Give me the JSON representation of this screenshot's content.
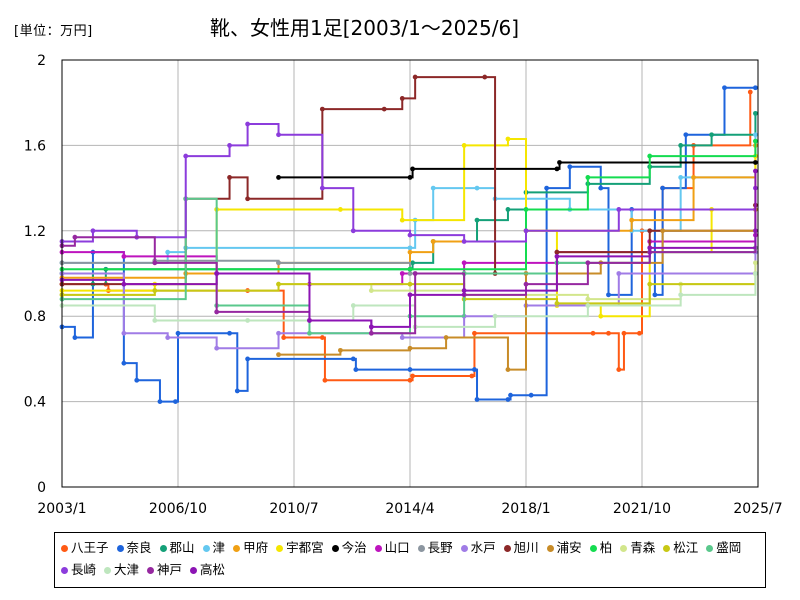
{
  "chart_data": {
    "type": "line",
    "title": "靴、女性用1足[2003/1～2025/6]",
    "unit_label": "[単位：万円]",
    "ylim": [
      0,
      2
    ],
    "yticks": [
      "0",
      "0.4",
      "0.8",
      "1.2",
      "1.6",
      "2"
    ],
    "xlim": [
      "2003-01",
      "2025-07"
    ],
    "xticks": [
      "2003/1",
      "2006/10",
      "2010/7",
      "2014/4",
      "2018/1",
      "2021/10",
      "2025/7"
    ],
    "grid": true,
    "legend_position": "bottom",
    "series": [
      {
        "name": "八王子",
        "color": "#ff5a14",
        "points": [
          [
            "2003-01",
            0.95
          ],
          [
            "2004-06",
            0.95
          ],
          [
            "2004-07",
            0.92
          ],
          [
            "2009-01",
            0.92
          ],
          [
            "2010-03",
            0.7
          ],
          [
            "2011-06",
            0.7
          ],
          [
            "2011-07",
            0.5
          ],
          [
            "2014-04",
            0.5
          ],
          [
            "2014-05",
            0.52
          ],
          [
            "2016-04",
            0.52
          ],
          [
            "2016-05",
            0.72
          ],
          [
            "2020-03",
            0.72
          ],
          [
            "2020-09",
            0.72
          ],
          [
            "2021-01",
            0.55
          ],
          [
            "2021-03",
            0.72
          ],
          [
            "2021-09",
            0.72
          ],
          [
            "2021-10",
            1.2
          ],
          [
            "2022-06",
            1.4
          ],
          [
            "2023-06",
            1.6
          ],
          [
            "2025-04",
            1.85
          ]
        ]
      },
      {
        "name": "奈良",
        "color": "#1e64dc",
        "points": [
          [
            "2003-01",
            0.75
          ],
          [
            "2003-06",
            0.7
          ],
          [
            "2004-01",
            1.1
          ],
          [
            "2005-01",
            0.58
          ],
          [
            "2005-06",
            0.5
          ],
          [
            "2006-03",
            0.4
          ],
          [
            "2006-09",
            0.4
          ],
          [
            "2006-10",
            0.72
          ],
          [
            "2008-06",
            0.72
          ],
          [
            "2008-09",
            0.45
          ],
          [
            "2009-01",
            0.6
          ],
          [
            "2012-06",
            0.6
          ],
          [
            "2012-07",
            0.55
          ],
          [
            "2014-04",
            0.55
          ],
          [
            "2016-05",
            0.55
          ],
          [
            "2016-06",
            0.41
          ],
          [
            "2017-06",
            0.41
          ],
          [
            "2017-07",
            0.43
          ],
          [
            "2018-03",
            0.43
          ],
          [
            "2018-09",
            1.4
          ],
          [
            "2019-06",
            1.5
          ],
          [
            "2020-06",
            1.4
          ],
          [
            "2020-09",
            0.9
          ],
          [
            "2021-06",
            1.3
          ],
          [
            "2022-03",
            0.9
          ],
          [
            "2022-06",
            1.4
          ],
          [
            "2023-03",
            1.65
          ],
          [
            "2024-06",
            1.87
          ],
          [
            "2025-06",
            1.87
          ]
        ]
      },
      {
        "name": "郡山",
        "color": "#14a078",
        "points": [
          [
            "2003-01",
            1.0
          ],
          [
            "2004-01",
            0.95
          ],
          [
            "2004-06",
            1.02
          ],
          [
            "2014-04",
            1.02
          ],
          [
            "2014-05",
            1.05
          ],
          [
            "2015-01",
            1.15
          ],
          [
            "2016-06",
            1.25
          ],
          [
            "2017-06",
            1.3
          ],
          [
            "2018-01",
            1.38
          ],
          [
            "2020-01",
            1.42
          ],
          [
            "2022-01",
            1.5
          ],
          [
            "2023-01",
            1.6
          ],
          [
            "2024-01",
            1.65
          ],
          [
            "2025-06",
            1.75
          ]
        ]
      },
      {
        "name": "津",
        "color": "#64c8f0",
        "points": [
          [
            "2003-01",
            1.05
          ],
          [
            "2006-06",
            1.1
          ],
          [
            "2007-01",
            1.12
          ],
          [
            "2014-04",
            1.12
          ],
          [
            "2014-06",
            1.25
          ],
          [
            "2015-01",
            1.4
          ],
          [
            "2016-06",
            1.4
          ],
          [
            "2017-01",
            1.35
          ],
          [
            "2019-06",
            1.3
          ],
          [
            "2021-06",
            1.2
          ],
          [
            "2023-01",
            1.45
          ],
          [
            "2025-06",
            1.65
          ]
        ]
      },
      {
        "name": "甲府",
        "color": "#f0a014",
        "points": [
          [
            "2003-01",
            0.98
          ],
          [
            "2007-01",
            1.0
          ],
          [
            "2010-01",
            1.05
          ],
          [
            "2014-04",
            1.1
          ],
          [
            "2015-01",
            1.15
          ],
          [
            "2018-01",
            1.2
          ],
          [
            "2021-06",
            1.25
          ],
          [
            "2023-06",
            1.45
          ],
          [
            "2025-06",
            1.6
          ]
        ]
      },
      {
        "name": "宇都宮",
        "color": "#f5e600",
        "points": [
          [
            "2003-01",
            0.92
          ],
          [
            "2006-01",
            0.95
          ],
          [
            "2008-01",
            1.3
          ],
          [
            "2012-01",
            1.3
          ],
          [
            "2014-01",
            1.25
          ],
          [
            "2016-01",
            1.6
          ],
          [
            "2017-06",
            1.63
          ],
          [
            "2018-01",
            1.2
          ],
          [
            "2019-01",
            0.85
          ],
          [
            "2020-06",
            0.8
          ],
          [
            "2022-01",
            1.1
          ],
          [
            "2024-01",
            1.3
          ],
          [
            "2025-06",
            1.55
          ]
        ]
      },
      {
        "name": "今治",
        "color": "#000000",
        "points": [
          [
            "2010-01",
            1.45
          ],
          [
            "2014-04",
            1.45
          ],
          [
            "2014-05",
            1.49
          ],
          [
            "2019-01",
            1.49
          ],
          [
            "2019-02",
            1.52
          ],
          [
            "2025-06",
            1.52
          ]
        ]
      },
      {
        "name": "山口",
        "color": "#be14be",
        "points": [
          [
            "2003-01",
            1.1
          ],
          [
            "2005-01",
            1.08
          ],
          [
            "2008-01",
            1.0
          ],
          [
            "2011-01",
            0.95
          ],
          [
            "2014-01",
            1.0
          ],
          [
            "2016-01",
            1.05
          ],
          [
            "2019-01",
            1.1
          ],
          [
            "2022-01",
            1.15
          ],
          [
            "2025-06",
            1.18
          ]
        ]
      },
      {
        "name": "長野",
        "color": "#8c96a0",
        "points": [
          [
            "2003-01",
            1.05
          ],
          [
            "2006-01",
            1.06
          ],
          [
            "2010-01",
            1.05
          ],
          [
            "2014-04",
            1.0
          ],
          [
            "2016-01",
            1.0
          ],
          [
            "2019-01",
            1.05
          ],
          [
            "2022-01",
            1.1
          ],
          [
            "2025-06",
            1.12
          ]
        ]
      },
      {
        "name": "水戸",
        "color": "#a07ce6",
        "points": [
          [
            "2003-01",
            1.0
          ],
          [
            "2005-01",
            0.72
          ],
          [
            "2006-06",
            0.7
          ],
          [
            "2008-01",
            0.65
          ],
          [
            "2010-01",
            0.72
          ],
          [
            "2014-01",
            0.7
          ],
          [
            "2016-01",
            0.8
          ],
          [
            "2018-01",
            0.85
          ],
          [
            "2021-01",
            1.0
          ],
          [
            "2025-06",
            1.1
          ]
        ]
      },
      {
        "name": "旭川",
        "color": "#8c2828",
        "points": [
          [
            "2003-01",
            0.95
          ],
          [
            "2007-01",
            1.35
          ],
          [
            "2008-06",
            1.45
          ],
          [
            "2009-01",
            1.35
          ],
          [
            "2011-06",
            1.77
          ],
          [
            "2013-06",
            1.77
          ],
          [
            "2014-01",
            1.82
          ],
          [
            "2014-06",
            1.92
          ],
          [
            "2016-09",
            1.92
          ],
          [
            "2017-01",
            1.0
          ],
          [
            "2019-01",
            1.1
          ],
          [
            "2022-01",
            1.2
          ],
          [
            "2025-06",
            1.32
          ]
        ]
      },
      {
        "name": "浦安",
        "color": "#c88c28",
        "points": [
          [
            "2010-01",
            0.62
          ],
          [
            "2012-01",
            0.64
          ],
          [
            "2014-04",
            0.65
          ],
          [
            "2015-06",
            0.7
          ],
          [
            "2017-06",
            0.55
          ],
          [
            "2018-01",
            1.0
          ],
          [
            "2020-06",
            1.05
          ],
          [
            "2022-06",
            1.2
          ],
          [
            "2025-06",
            1.3
          ]
        ]
      },
      {
        "name": "柏",
        "color": "#14dc50",
        "points": [
          [
            "2003-01",
            1.02
          ],
          [
            "2014-04",
            1.02
          ],
          [
            "2018-01",
            1.3
          ],
          [
            "2020-01",
            1.45
          ],
          [
            "2022-01",
            1.55
          ],
          [
            "2025-06",
            1.62
          ]
        ]
      },
      {
        "name": "青森",
        "color": "#d2e68c",
        "points": [
          [
            "2003-01",
            0.9
          ],
          [
            "2006-01",
            0.92
          ],
          [
            "2010-01",
            0.95
          ],
          [
            "2013-01",
            0.92
          ],
          [
            "2016-01",
            0.9
          ],
          [
            "2020-01",
            0.88
          ],
          [
            "2023-01",
            0.95
          ],
          [
            "2025-06",
            1.05
          ]
        ]
      },
      {
        "name": "松江",
        "color": "#c8c814",
        "points": [
          [
            "2003-01",
            0.9
          ],
          [
            "2006-01",
            0.92
          ],
          [
            "2010-01",
            0.95
          ],
          [
            "2014-04",
            0.95
          ],
          [
            "2016-01",
            0.88
          ],
          [
            "2019-01",
            0.86
          ],
          [
            "2022-01",
            0.95
          ],
          [
            "2025-06",
            1.0
          ]
        ]
      },
      {
        "name": "盛岡",
        "color": "#5ac88c",
        "points": [
          [
            "2003-01",
            0.88
          ],
          [
            "2007-01",
            1.35
          ],
          [
            "2008-01",
            0.85
          ],
          [
            "2011-01",
            0.72
          ],
          [
            "2014-04",
            0.8
          ],
          [
            "2016-01",
            1.0
          ],
          [
            "2019-01",
            1.05
          ],
          [
            "2022-01",
            1.1
          ],
          [
            "2025-06",
            1.2
          ]
        ]
      },
      {
        "name": "長崎",
        "color": "#8c3cdc",
        "points": [
          [
            "2003-01",
            1.15
          ],
          [
            "2004-01",
            1.2
          ],
          [
            "2005-06",
            1.17
          ],
          [
            "2007-01",
            1.55
          ],
          [
            "2008-06",
            1.6
          ],
          [
            "2009-01",
            1.7
          ],
          [
            "2010-01",
            1.65
          ],
          [
            "2011-06",
            1.4
          ],
          [
            "2012-06",
            1.2
          ],
          [
            "2014-04",
            1.18
          ],
          [
            "2016-01",
            1.15
          ],
          [
            "2018-01",
            1.2
          ],
          [
            "2021-01",
            1.3
          ],
          [
            "2025-06",
            1.4
          ]
        ]
      },
      {
        "name": "大津",
        "color": "#bee6be",
        "points": [
          [
            "2003-01",
            0.85
          ],
          [
            "2006-01",
            0.78
          ],
          [
            "2009-01",
            0.78
          ],
          [
            "2012-06",
            0.85
          ],
          [
            "2014-06",
            0.75
          ],
          [
            "2017-01",
            0.8
          ],
          [
            "2020-01",
            0.85
          ],
          [
            "2023-01",
            0.9
          ],
          [
            "2025-06",
            1.0
          ]
        ]
      },
      {
        "name": "神戸",
        "color": "#9628a0",
        "points": [
          [
            "2003-01",
            1.13
          ],
          [
            "2003-06",
            1.17
          ],
          [
            "2006-01",
            1.05
          ],
          [
            "2008-01",
            0.82
          ],
          [
            "2011-01",
            0.78
          ],
          [
            "2013-01",
            0.72
          ],
          [
            "2014-06",
            1.0
          ],
          [
            "2016-01",
            0.9
          ],
          [
            "2018-01",
            0.95
          ],
          [
            "2020-01",
            1.05
          ],
          [
            "2022-01",
            1.1
          ],
          [
            "2025-06",
            1.2
          ]
        ]
      },
      {
        "name": "高松",
        "color": "#8c14b4",
        "points": [
          [
            "2003-01",
            0.97
          ],
          [
            "2005-01",
            0.95
          ],
          [
            "2008-01",
            1.0
          ],
          [
            "2011-01",
            0.78
          ],
          [
            "2013-01",
            0.75
          ],
          [
            "2014-04",
            0.9
          ],
          [
            "2016-01",
            0.92
          ],
          [
            "2019-01",
            1.08
          ],
          [
            "2022-01",
            1.12
          ],
          [
            "2025-06",
            1.48
          ]
        ]
      }
    ]
  }
}
